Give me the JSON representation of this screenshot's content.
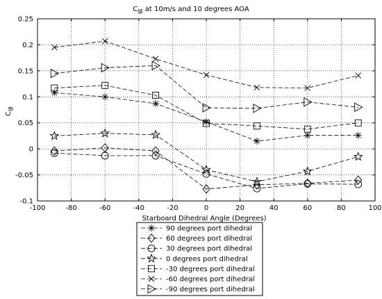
{
  "chart_data": {
    "type": "line",
    "title_main": "C",
    "title_sub": "lβ",
    "title_rest": " at 10m/s and 10 degrees AOA",
    "xlabel": "Starboard Dihedral Angle (Degrees)",
    "ylabel_main": "C",
    "ylabel_sub": "lβ",
    "xlim": [
      -100,
      100
    ],
    "ylim": [
      -0.1,
      0.25
    ],
    "xticks": [
      -100,
      -80,
      -60,
      -40,
      -20,
      0,
      20,
      40,
      60,
      80,
      100
    ],
    "yticks": [
      -0.1,
      -0.05,
      0,
      0.05,
      0.1,
      0.15,
      0.2,
      0.25
    ],
    "xtick_labels": [
      "-100",
      "-80",
      "-60",
      "-40",
      "-20",
      "0",
      "20",
      "40",
      "60",
      "80",
      "100"
    ],
    "ytick_labels": [
      "-0.1",
      "-0.05",
      "0",
      "0.05",
      "0.1",
      "0.15",
      "0.2",
      "0.25"
    ],
    "grid": true,
    "legend_position": "below",
    "line_color": "#000000",
    "x": [
      -90,
      -60,
      -30,
      0,
      30,
      60,
      90
    ],
    "series": [
      {
        "name": "90 degrees port dihedral",
        "marker": "star",
        "values": [
          0.108,
          0.1,
          0.087,
          0.052,
          0.015,
          0.026,
          0.026
        ]
      },
      {
        "name": "60 degrees port dihedral",
        "marker": "diamond",
        "values": [
          -0.004,
          0.002,
          -0.004,
          -0.077,
          -0.069,
          -0.066,
          -0.06
        ]
      },
      {
        "name": "30 degrees port dihedral",
        "marker": "circle",
        "values": [
          -0.008,
          -0.013,
          -0.013,
          -0.048,
          -0.076,
          -0.067,
          -0.068
        ]
      },
      {
        "name": "0 degrees port dihedral",
        "marker": "pentagram",
        "values": [
          0.025,
          0.03,
          0.027,
          -0.04,
          -0.063,
          -0.043,
          -0.015
        ]
      },
      {
        "name": "-30 degrees port dihedral",
        "marker": "square",
        "values": [
          0.117,
          0.122,
          0.103,
          0.049,
          0.044,
          0.038,
          0.05
        ]
      },
      {
        "name": "-60 degrees port dihedral",
        "marker": "x",
        "values": [
          0.195,
          0.207,
          0.173,
          0.142,
          0.118,
          0.117,
          0.141
        ]
      },
      {
        "name": "-90 degrees port dihedral",
        "marker": "triangle-right",
        "values": [
          0.145,
          0.156,
          0.16,
          0.079,
          0.078,
          0.09,
          0.08
        ]
      }
    ]
  }
}
